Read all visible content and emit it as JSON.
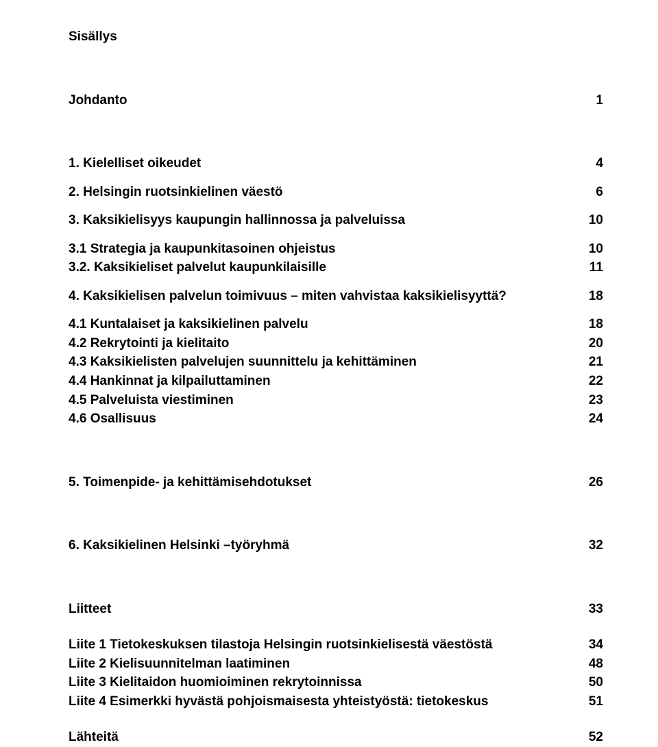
{
  "typography": {
    "font_family": "Arial, Helvetica, sans-serif",
    "font_size_pt": 14,
    "font_weight": "bold",
    "text_color": "#000000",
    "background_color": "#ffffff"
  },
  "heading": "Sisällys",
  "toc": [
    {
      "label": "Johdanto",
      "page": "1",
      "gap_before": "xl"
    },
    {
      "label": "1. Kielelliset oikeudet",
      "page": "4",
      "gap_before": "xl"
    },
    {
      "label": "2. Helsingin ruotsinkielinen väestö",
      "page": "6",
      "gap_before": "sm"
    },
    {
      "label": "3. Kaksikielisyys kaupungin hallinnossa ja palveluissa",
      "page": "10",
      "gap_before": "sm"
    },
    {
      "label": "3.1 Strategia ja kaupunkitasoinen ohjeistus",
      "page": "10",
      "gap_before": "sm"
    },
    {
      "label": "3.2. Kaksikieliset palvelut kaupunkilaisille",
      "page": "11",
      "gap_before": ""
    },
    {
      "label": "4. Kaksikielisen palvelun toimivuus – miten vahvistaa kaksikielisyyttä?",
      "page": "18",
      "gap_before": "sm"
    },
    {
      "label": "4.1 Kuntalaiset ja kaksikielinen palvelu",
      "page": "18",
      "gap_before": "sm"
    },
    {
      "label": "4.2 Rekrytointi ja kielitaito",
      "page": "20",
      "gap_before": ""
    },
    {
      "label": "4.3 Kaksikielisten palvelujen suunnittelu ja kehittäminen",
      "page": "21",
      "gap_before": ""
    },
    {
      "label": "4.4 Hankinnat ja kilpailuttaminen",
      "page": "22",
      "gap_before": ""
    },
    {
      "label": "4.5 Palveluista viestiminen",
      "page": "23",
      "gap_before": ""
    },
    {
      "label": "4.6 Osallisuus",
      "page": "24",
      "gap_before": ""
    },
    {
      "label": "5. Toimenpide- ja kehittämisehdotukset",
      "page": "26",
      "gap_before": "xl"
    },
    {
      "label": "6. Kaksikielinen Helsinki –työryhmä",
      "page": "32",
      "gap_before": "xl"
    },
    {
      "label": "Liitteet",
      "page": "33",
      "gap_before": "xl"
    },
    {
      "label": "Liite 1 Tietokeskuksen tilastoja Helsingin ruotsinkielisestä väestöstä",
      "page": "34",
      "gap_before": "md"
    },
    {
      "label": "Liite 2 Kielisuunnitelman laatiminen",
      "page": "48",
      "gap_before": ""
    },
    {
      "label": "Liite 3 Kielitaidon huomioiminen rekrytoinnissa",
      "page": "50",
      "gap_before": ""
    },
    {
      "label": "Liite 4 Esimerkki hyvästä pohjoismaisesta yhteistyöstä: tietokeskus",
      "page": "51",
      "gap_before": ""
    },
    {
      "label": "Lähteitä",
      "page": "52",
      "gap_before": "md"
    }
  ]
}
